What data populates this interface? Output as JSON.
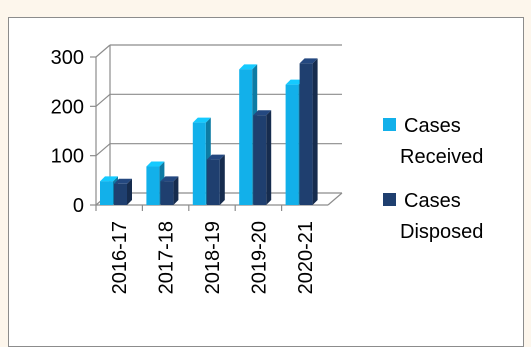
{
  "chart_data": {
    "type": "bar",
    "categories": [
      "2016-17",
      "2017-18",
      "2018-19",
      "2019-20",
      "2020-21"
    ],
    "series": [
      {
        "name": "Cases Received",
        "values": [
          48,
          78,
          167,
          275,
          244
        ],
        "color": "#12b0ea"
      },
      {
        "name": "Cases Disposed",
        "values": [
          43,
          48,
          92,
          182,
          287
        ],
        "color": "#1f3f6f"
      }
    ],
    "y_ticks": [
      "0",
      "100",
      "200",
      "300"
    ],
    "ylim": [
      0,
      300
    ],
    "grid": true,
    "style": "3d-clustered-column",
    "legend": {
      "position": "right",
      "entries": [
        {
          "lines": [
            "Cases",
            "Received"
          ]
        },
        {
          "lines": [
            "Cases",
            "Disposed"
          ]
        }
      ]
    }
  }
}
